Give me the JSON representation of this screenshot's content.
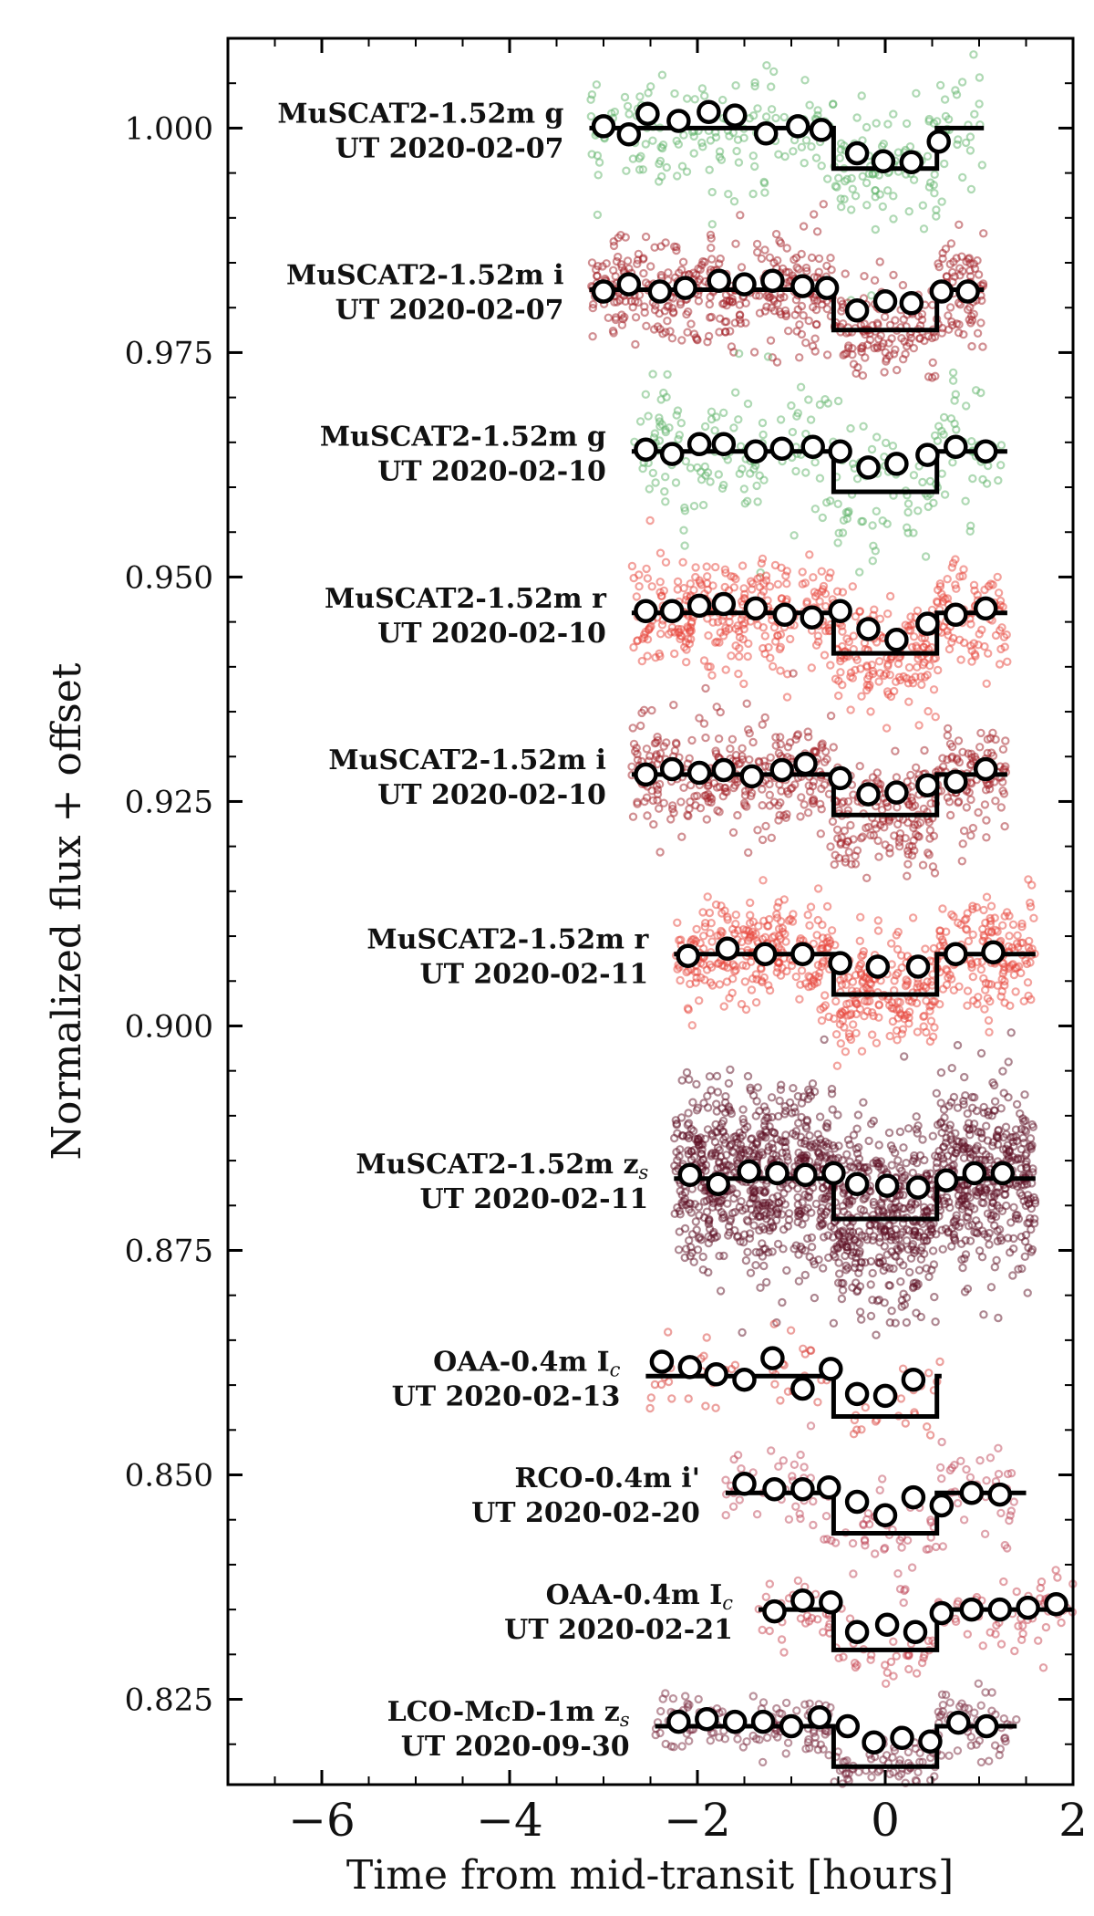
{
  "chart_data": {
    "type": "scatter",
    "xlabel": "Time from mid-transit [hours]",
    "ylabel": "Normalized flux + offset",
    "xlim": [
      -7,
      2
    ],
    "ylim": [
      0.8155,
      1.01
    ],
    "xticks": [
      -6,
      -4,
      -2,
      0,
      2
    ],
    "xtick_labels": [
      "−6",
      "−4",
      "−2",
      "0",
      "2"
    ],
    "yticks": [
      0.825,
      0.85,
      0.875,
      0.9,
      0.925,
      0.95,
      0.975,
      1.0
    ],
    "ytick_labels": [
      "0.825",
      "0.850",
      "0.875",
      "0.900",
      "0.925",
      "0.950",
      "0.975",
      "1.000"
    ],
    "transit": {
      "depth": 0.0045,
      "half_duration_hours": 0.55
    },
    "series": [
      {
        "name": "MuSCAT2-1.52m g",
        "date": "UT 2020-02-07",
        "label_line1": "MuSCAT2-1.52m g",
        "label_line2": "UT 2020-02-07",
        "color": "#5fb36a",
        "baseline": 1.0,
        "x_range": [
          -3.15,
          1.05
        ],
        "scatter": 0.0035,
        "n_points": 260,
        "binned": [
          [
            -3.0,
            1.0002
          ],
          [
            -2.73,
            0.9993
          ],
          [
            -2.53,
            1.0016
          ],
          [
            -2.2,
            1.0008
          ],
          [
            -1.88,
            1.0018
          ],
          [
            -1.6,
            1.0014
          ],
          [
            -1.27,
            0.9994
          ],
          [
            -0.93,
            1.0002
          ],
          [
            -0.68,
            0.9998
          ],
          [
            -0.3,
            0.9972
          ],
          [
            -0.02,
            0.9963
          ],
          [
            0.28,
            0.9962
          ],
          [
            0.57,
            0.9985
          ]
        ]
      },
      {
        "name": "MuSCAT2-1.52m i",
        "date": "UT 2020-02-07",
        "label_line1": "MuSCAT2-1.52m i",
        "label_line2": "UT 2020-02-07",
        "color": "#a31f26",
        "baseline": 0.982,
        "x_range": [
          -3.15,
          1.05
        ],
        "scatter": 0.003,
        "n_points": 560,
        "binned": [
          [
            -3.0,
            0.9818
          ],
          [
            -2.73,
            0.9826
          ],
          [
            -2.4,
            0.9818
          ],
          [
            -2.13,
            0.9822
          ],
          [
            -1.77,
            0.983
          ],
          [
            -1.5,
            0.9826
          ],
          [
            -1.2,
            0.983
          ],
          [
            -0.88,
            0.9824
          ],
          [
            -0.62,
            0.9822
          ],
          [
            -0.3,
            0.9797
          ],
          [
            0.0,
            0.9807
          ],
          [
            0.28,
            0.9805
          ],
          [
            0.6,
            0.9818
          ],
          [
            0.88,
            0.9818
          ]
        ]
      },
      {
        "name": "MuSCAT2-1.52m g",
        "date": "UT 2020-02-10",
        "label_line1": "MuSCAT2-1.52m g",
        "label_line2": "UT 2020-02-10",
        "color": "#5fb36a",
        "baseline": 0.964,
        "x_range": [
          -2.7,
          1.3
        ],
        "scatter": 0.0035,
        "n_points": 240,
        "binned": [
          [
            -2.55,
            0.9642
          ],
          [
            -2.27,
            0.9637
          ],
          [
            -1.98,
            0.9648
          ],
          [
            -1.72,
            0.9648
          ],
          [
            -1.38,
            0.964
          ],
          [
            -1.1,
            0.9643
          ],
          [
            -0.77,
            0.9645
          ],
          [
            -0.48,
            0.964
          ],
          [
            -0.18,
            0.9622
          ],
          [
            0.12,
            0.9626
          ],
          [
            0.45,
            0.9636
          ],
          [
            0.75,
            0.9645
          ],
          [
            1.07,
            0.964
          ]
        ]
      },
      {
        "name": "MuSCAT2-1.52m r",
        "date": "UT 2020-02-10",
        "label_line1": "MuSCAT2-1.52m r",
        "label_line2": "UT 2020-02-10",
        "color": "#e8463c",
        "baseline": 0.946,
        "x_range": [
          -2.7,
          1.3
        ],
        "scatter": 0.003,
        "n_points": 560,
        "binned": [
          [
            -2.55,
            0.9462
          ],
          [
            -2.27,
            0.9462
          ],
          [
            -1.98,
            0.9468
          ],
          [
            -1.72,
            0.947
          ],
          [
            -1.38,
            0.9465
          ],
          [
            -1.07,
            0.9458
          ],
          [
            -0.78,
            0.9455
          ],
          [
            -0.48,
            0.9462
          ],
          [
            -0.18,
            0.9442
          ],
          [
            0.12,
            0.943
          ],
          [
            0.45,
            0.9448
          ],
          [
            0.75,
            0.9458
          ],
          [
            1.07,
            0.9465
          ]
        ]
      },
      {
        "name": "MuSCAT2-1.52m i",
        "date": "UT 2020-02-10",
        "label_line1": "MuSCAT2-1.52m i",
        "label_line2": "UT 2020-02-10",
        "color": "#a31f26",
        "baseline": 0.928,
        "x_range": [
          -2.7,
          1.3
        ],
        "scatter": 0.003,
        "n_points": 560,
        "binned": [
          [
            -2.55,
            0.928
          ],
          [
            -2.27,
            0.9286
          ],
          [
            -1.98,
            0.9282
          ],
          [
            -1.72,
            0.9285
          ],
          [
            -1.42,
            0.9278
          ],
          [
            -1.1,
            0.9285
          ],
          [
            -0.85,
            0.9292
          ],
          [
            -0.48,
            0.9276
          ],
          [
            -0.18,
            0.9258
          ],
          [
            0.12,
            0.926
          ],
          [
            0.45,
            0.9268
          ],
          [
            0.75,
            0.9272
          ],
          [
            1.07,
            0.9286
          ]
        ]
      },
      {
        "name": "MuSCAT2-1.52m r",
        "date": "UT 2020-02-11",
        "label_line1": "MuSCAT2-1.52m r",
        "label_line2": "UT 2020-02-11",
        "color": "#e8463c",
        "baseline": 0.908,
        "x_range": [
          -2.25,
          1.6
        ],
        "scatter": 0.003,
        "n_points": 620,
        "binned": [
          [
            -2.1,
            0.9078
          ],
          [
            -1.68,
            0.9086
          ],
          [
            -1.28,
            0.908
          ],
          [
            -0.88,
            0.908
          ],
          [
            -0.48,
            0.907
          ],
          [
            -0.08,
            0.9066
          ],
          [
            0.35,
            0.9066
          ],
          [
            0.75,
            0.908
          ],
          [
            1.15,
            0.9082
          ]
        ]
      },
      {
        "name": "MuSCAT2-1.52m z_s",
        "date": "UT 2020-02-11",
        "label_line1": "MuSCAT2-1.52m z",
        "label_sub": "s",
        "label_line2": "UT 2020-02-11",
        "color": "#5e1024",
        "baseline": 0.883,
        "x_range": [
          -2.25,
          1.6
        ],
        "scatter": 0.005,
        "n_points": 1500,
        "binned": [
          [
            -2.08,
            0.8834
          ],
          [
            -1.78,
            0.8824
          ],
          [
            -1.45,
            0.8838
          ],
          [
            -1.15,
            0.8836
          ],
          [
            -0.85,
            0.8834
          ],
          [
            -0.55,
            0.8836
          ],
          [
            -0.3,
            0.8824
          ],
          [
            0.02,
            0.8822
          ],
          [
            0.35,
            0.882
          ],
          [
            0.65,
            0.8828
          ],
          [
            0.95,
            0.8836
          ],
          [
            1.25,
            0.8836
          ]
        ]
      },
      {
        "name": "OAA-0.4m I_c",
        "date": "UT 2020-02-13",
        "label_line1": "OAA-0.4m I",
        "label_sub": "c",
        "label_line2": "UT 2020-02-13",
        "color": "#d9423c",
        "baseline": 0.861,
        "x_range": [
          -2.55,
          0.6
        ],
        "scatter": 0.0025,
        "n_points": 70,
        "binned": [
          [
            -2.38,
            0.8626
          ],
          [
            -2.08,
            0.862
          ],
          [
            -1.8,
            0.8612
          ],
          [
            -1.5,
            0.8606
          ],
          [
            -1.2,
            0.863
          ],
          [
            -0.88,
            0.8596
          ],
          [
            -0.58,
            0.8618
          ],
          [
            -0.3,
            0.859
          ],
          [
            0.0,
            0.8588
          ],
          [
            0.3,
            0.8606
          ]
        ]
      },
      {
        "name": "RCO-0.4m i'",
        "date": "UT 2020-02-20",
        "label_line1": "RCO-0.4m i'",
        "label_sub": "",
        "label_line2": "UT 2020-02-20",
        "color": "#c0485a",
        "baseline": 0.848,
        "x_range": [
          -1.7,
          1.5
        ],
        "scatter": 0.0028,
        "n_points": 140,
        "binned": [
          [
            -1.5,
            0.849
          ],
          [
            -1.18,
            0.8484
          ],
          [
            -0.88,
            0.8484
          ],
          [
            -0.6,
            0.8486
          ],
          [
            -0.3,
            0.847
          ],
          [
            0.0,
            0.8455
          ],
          [
            0.3,
            0.8475
          ],
          [
            0.6,
            0.8466
          ],
          [
            0.92,
            0.848
          ],
          [
            1.22,
            0.8478
          ]
        ]
      },
      {
        "name": "OAA-0.4m I_c",
        "date": "UT 2020-02-21",
        "label_line1": "OAA-0.4m I",
        "label_sub": "c",
        "label_line2": "UT 2020-02-21",
        "color": "#c8434f",
        "baseline": 0.835,
        "x_range": [
          -1.35,
          2.0
        ],
        "scatter": 0.002,
        "n_points": 120,
        "binned": [
          [
            -1.18,
            0.8348
          ],
          [
            -0.88,
            0.836
          ],
          [
            -0.58,
            0.8358
          ],
          [
            -0.3,
            0.8325
          ],
          [
            0.02,
            0.8333
          ],
          [
            0.32,
            0.8325
          ],
          [
            0.6,
            0.8346
          ],
          [
            0.92,
            0.835
          ],
          [
            1.22,
            0.835
          ],
          [
            1.52,
            0.8352
          ],
          [
            1.82,
            0.8356
          ]
        ]
      },
      {
        "name": "LCO-McD-1m z_s",
        "date": "UT 2020-09-30",
        "label_line1": "LCO-McD-1m z",
        "label_sub": "s",
        "label_line2": "UT 2020-09-30",
        "color": "#7a2a3e",
        "baseline": 0.822,
        "x_range": [
          -2.45,
          1.4
        ],
        "scatter": 0.0018,
        "n_points": 260,
        "binned": [
          [
            -2.2,
            0.8225
          ],
          [
            -1.9,
            0.8228
          ],
          [
            -1.6,
            0.8225
          ],
          [
            -1.3,
            0.8225
          ],
          [
            -1.0,
            0.822
          ],
          [
            -0.7,
            0.823
          ],
          [
            -0.4,
            0.822
          ],
          [
            -0.12,
            0.8202
          ],
          [
            0.18,
            0.8207
          ],
          [
            0.48,
            0.8203
          ],
          [
            0.78,
            0.8224
          ],
          [
            1.08,
            0.822
          ]
        ]
      }
    ]
  }
}
